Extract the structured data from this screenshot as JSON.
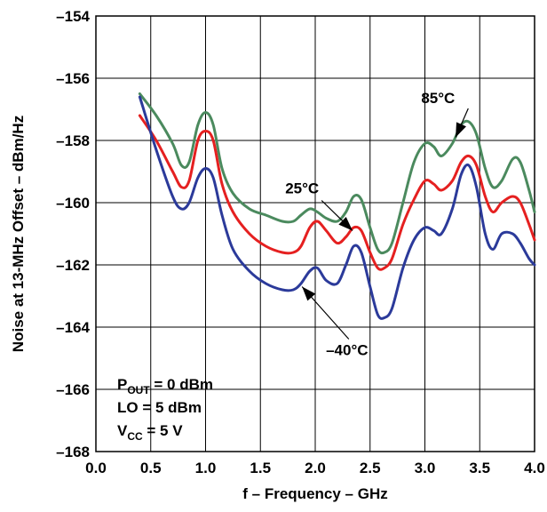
{
  "chart_data": {
    "type": "line",
    "xlabel": "f – Frequency – GHz",
    "ylabel": "Noise at 13-MHz Offset – dBm/Hz",
    "xlim": [
      0.0,
      4.0
    ],
    "ylim": [
      -168,
      -154
    ],
    "x_ticks": [
      0.0,
      0.5,
      1.0,
      1.5,
      2.0,
      2.5,
      3.0,
      3.5,
      4.0
    ],
    "x_tick_labels": [
      "0.0",
      "0.5",
      "1.0",
      "1.5",
      "2.0",
      "2.5",
      "3.0",
      "3.5",
      "4.0"
    ],
    "y_ticks": [
      -154,
      -156,
      -158,
      -160,
      -162,
      -164,
      -166,
      -168
    ],
    "y_tick_labels": [
      "–154",
      "–156",
      "–158",
      "–160",
      "–162",
      "–164",
      "–166",
      "–168"
    ],
    "grid": true,
    "series": [
      {
        "name": "85°C",
        "color": "#4b8a5e",
        "x": [
          0.4,
          0.55,
          0.7,
          0.78,
          0.85,
          0.93,
          1.0,
          1.07,
          1.15,
          1.25,
          1.4,
          1.55,
          1.7,
          1.8,
          1.87,
          1.95,
          2.02,
          2.1,
          2.2,
          2.28,
          2.35,
          2.42,
          2.5,
          2.57,
          2.63,
          2.7,
          2.8,
          2.9,
          3.0,
          3.08,
          3.15,
          3.25,
          3.33,
          3.4,
          3.47,
          3.55,
          3.62,
          3.7,
          3.8,
          3.87,
          3.95,
          4.0
        ],
        "y": [
          -156.5,
          -157.2,
          -158.1,
          -158.8,
          -158.7,
          -157.5,
          -157.1,
          -157.5,
          -158.9,
          -159.7,
          -160.2,
          -160.4,
          -160.6,
          -160.6,
          -160.4,
          -160.2,
          -160.3,
          -160.5,
          -160.6,
          -160.3,
          -159.8,
          -159.9,
          -160.8,
          -161.5,
          -161.6,
          -161.3,
          -160.0,
          -158.7,
          -158.1,
          -158.2,
          -158.5,
          -158.1,
          -157.5,
          -157.4,
          -157.8,
          -158.9,
          -159.5,
          -159.3,
          -158.6,
          -158.7,
          -159.6,
          -160.3
        ]
      },
      {
        "name": "25°C",
        "color": "#e52020",
        "x": [
          0.4,
          0.55,
          0.7,
          0.78,
          0.85,
          0.93,
          1.0,
          1.07,
          1.15,
          1.25,
          1.4,
          1.55,
          1.7,
          1.8,
          1.87,
          1.95,
          2.02,
          2.1,
          2.2,
          2.28,
          2.35,
          2.42,
          2.5,
          2.57,
          2.63,
          2.7,
          2.8,
          2.9,
          3.0,
          3.08,
          3.15,
          3.25,
          3.33,
          3.4,
          3.47,
          3.55,
          3.62,
          3.7,
          3.8,
          3.87,
          3.95,
          4.0
        ],
        "y": [
          -157.2,
          -158.0,
          -159.0,
          -159.5,
          -159.3,
          -158.0,
          -157.7,
          -158.0,
          -159.4,
          -160.3,
          -161.0,
          -161.4,
          -161.6,
          -161.6,
          -161.4,
          -160.8,
          -160.6,
          -160.9,
          -161.3,
          -161.1,
          -160.8,
          -160.9,
          -161.6,
          -162.1,
          -162.1,
          -161.8,
          -160.7,
          -159.9,
          -159.3,
          -159.4,
          -159.6,
          -159.3,
          -158.7,
          -158.5,
          -158.8,
          -159.8,
          -160.3,
          -160.0,
          -159.8,
          -160.0,
          -160.7,
          -161.2
        ]
      },
      {
        "name": "–40°C",
        "color": "#2b3a9a",
        "x": [
          0.4,
          0.55,
          0.7,
          0.78,
          0.85,
          0.93,
          1.0,
          1.07,
          1.15,
          1.25,
          1.4,
          1.55,
          1.7,
          1.8,
          1.87,
          1.95,
          2.02,
          2.1,
          2.2,
          2.28,
          2.35,
          2.42,
          2.5,
          2.57,
          2.63,
          2.7,
          2.8,
          2.9,
          3.0,
          3.08,
          3.15,
          3.25,
          3.33,
          3.4,
          3.47,
          3.55,
          3.62,
          3.7,
          3.8,
          3.87,
          3.95,
          4.0
        ],
        "y": [
          -156.6,
          -158.3,
          -159.8,
          -160.2,
          -160.0,
          -159.2,
          -158.9,
          -159.2,
          -160.4,
          -161.5,
          -162.2,
          -162.6,
          -162.8,
          -162.8,
          -162.6,
          -162.2,
          -162.1,
          -162.5,
          -162.6,
          -162.0,
          -161.4,
          -161.6,
          -162.7,
          -163.6,
          -163.7,
          -163.4,
          -162.1,
          -161.2,
          -160.8,
          -160.9,
          -161.0,
          -160.2,
          -159.1,
          -158.8,
          -159.5,
          -161.0,
          -161.5,
          -161.0,
          -161.0,
          -161.3,
          -161.8,
          -162.0
        ]
      }
    ],
    "annotations": [
      {
        "label": "85°C",
        "x": 3.12,
        "y": -156.8,
        "arrow_to": [
          3.28,
          -157.9
        ]
      },
      {
        "label": "25°C",
        "x": 1.88,
        "y": -159.7,
        "arrow_to": [
          2.34,
          -160.9
        ]
      },
      {
        "label": "–40°C",
        "x": 2.29,
        "y": -164.9,
        "arrow_to": [
          1.88,
          -162.7
        ]
      }
    ],
    "conditions": [
      {
        "main": "P",
        "sub": "OUT",
        "rest": " = 0 dBm"
      },
      {
        "main": "LO = 5 dBm",
        "sub": "",
        "rest": ""
      },
      {
        "main": "V",
        "sub": "CC",
        "rest": " = 5 V"
      }
    ]
  }
}
